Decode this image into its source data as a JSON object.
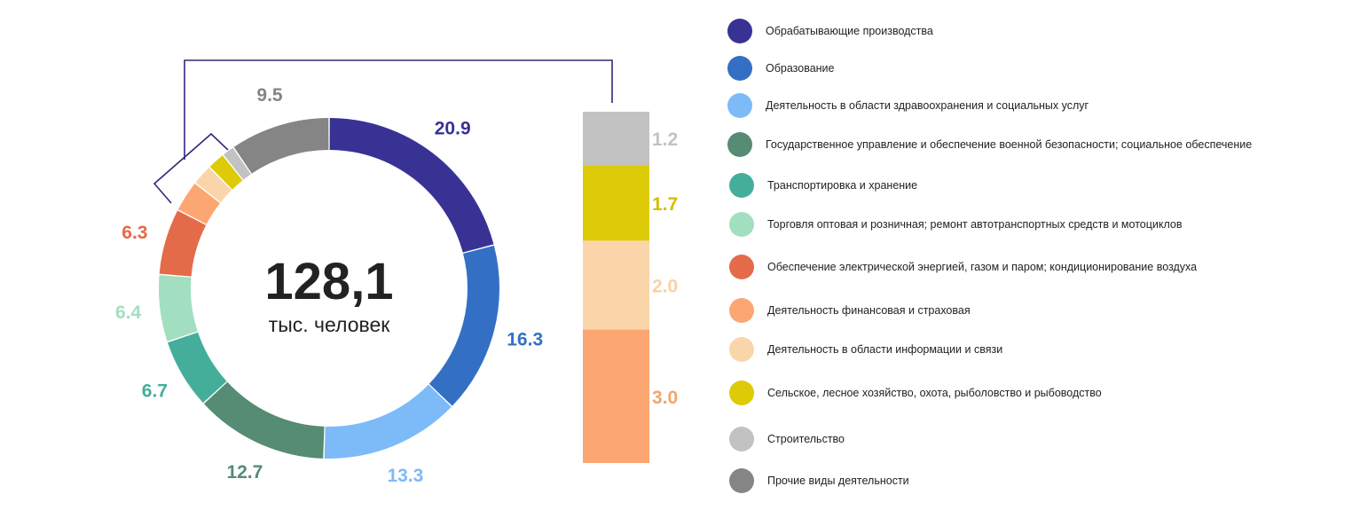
{
  "chart_data": {
    "type": "pie",
    "center": {
      "value": "128,1",
      "unit": "тыс. человек"
    },
    "slices": [
      {
        "name": "Обрабатывающие производства",
        "value": 20.9,
        "label": "20.9",
        "color": "#383295",
        "label_color": "#383295"
      },
      {
        "name": "Образование",
        "value": 16.3,
        "label": "16.3",
        "color": "#3370C4",
        "label_color": "#3370C4"
      },
      {
        "name": "Деятельность в области здравоохранения и социальных услуг",
        "value": 13.3,
        "label": "13.3",
        "color": "#7DBAF8",
        "label_color": "#7DBAF8"
      },
      {
        "name": "Государственное управление и обеспечение военной безопасности; социальное обеспечение",
        "value": 12.7,
        "label": "12.7",
        "color": "#568B74",
        "label_color": "#568B74"
      },
      {
        "name": "Транспортировка и хранение",
        "value": 6.7,
        "label": "6.7",
        "color": "#45AE9B",
        "label_color": "#45AE9B"
      },
      {
        "name": "Торговля оптовая и розничная; ремонт автотранспортных средств и мотоциклов",
        "value": 6.4,
        "label": "6.4",
        "color": "#A2DFC0",
        "label_color": "#A2DFC0"
      },
      {
        "name": "Обеспечение электрической энергией, газом и паром; кондиционирование воздуха",
        "value": 6.3,
        "label": "6.3",
        "color": "#E46B49",
        "label_color": "#E46B49"
      },
      {
        "name": "Деятельность финансовая и страховая",
        "value": 3.0,
        "label": "3.0",
        "color": "#FCA672",
        "label_color": "#F2A46E"
      },
      {
        "name": "Деятельность в области информации и связи",
        "value": 2.0,
        "label": "2.0",
        "color": "#FBD5AA",
        "label_color": "#F8D1A6"
      },
      {
        "name": "Сельское, лесное хозяйство, охота, рыболовство и рыбоводство",
        "value": 1.7,
        "label": "1.7",
        "color": "#DCCB06",
        "label_color": "#D2BE00"
      },
      {
        "name": "Строительство",
        "value": 1.2,
        "label": "1.2",
        "color": "#C2C2C2",
        "label_color": "#C2C2C2"
      },
      {
        "name": "Прочие виды деятельности",
        "value": 9.5,
        "label": "9.5",
        "color": "#858585",
        "label_color": "#858585"
      }
    ],
    "breakout_bar": {
      "items": [
        "Строительство",
        "Сельское, лесное хозяйство, охота, рыболовство и рыбоводство",
        "Деятельность в области информации и связи",
        "Деятельность финансовая и страховая"
      ]
    },
    "legend_placement": "right",
    "connector_color": "#2E2A7A"
  }
}
